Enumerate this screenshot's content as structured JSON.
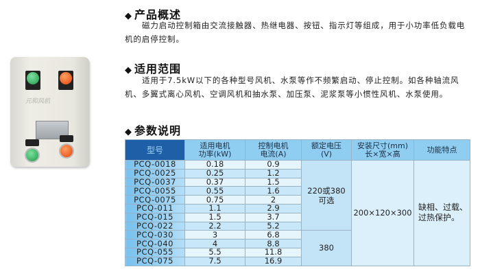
{
  "sections": {
    "overview": {
      "title": "产品概述",
      "text": "磁力启动控制箱由交流接触器、热继电器、按钮、指示灯等组成，用于小功率低负载电机的启停控制。"
    },
    "scope": {
      "title": "适用范围",
      "text": "适用于7.5kW以下的各种型号风机、水泵等作不频繁启动、停止控制。如各种轴流风机、多翼式离心风机、空调风机和抽水泵、加压泵、泥浆泵等小惯性风机、水泵使用。"
    },
    "params": {
      "title": "参数说明"
    }
  },
  "bullet": "◆",
  "product_image": {
    "icon": "control-box-photo",
    "lettering": "元和风机"
  },
  "table": {
    "headers": [
      "型号",
      "适用电机\n功率(kW)",
      "控制电机\n电流(A)",
      "额定电压\n(V)",
      "安装尺寸(mm)\n长×宽×高",
      "功能特点"
    ],
    "rows": [
      {
        "model": "PCQ-0018",
        "power": "0.18",
        "current": "0.9"
      },
      {
        "model": "PCQ-0025",
        "power": "0.25",
        "current": "1.2"
      },
      {
        "model": "PCQ-0037",
        "power": "0.37",
        "current": "1.5"
      },
      {
        "model": "PCQ-0055",
        "power": "0.55",
        "current": "1.6"
      },
      {
        "model": "PCQ-0075",
        "power": "0.75",
        "current": "2"
      },
      {
        "model": "PCQ-011",
        "power": "1.1",
        "current": "2.9"
      },
      {
        "model": "PCQ-015",
        "power": "1.5",
        "current": "3.7"
      },
      {
        "model": "PCQ-022",
        "power": "2.2",
        "current": "5.2"
      },
      {
        "model": "PCQ-030",
        "power": "3",
        "current": "6.8"
      },
      {
        "model": "PCQ-040",
        "power": "4",
        "current": "8.8"
      },
      {
        "model": "PCQ-055",
        "power": "5.5",
        "current": "11.8"
      },
      {
        "model": "PCQ-075",
        "power": "7.5",
        "current": "16.9"
      }
    ],
    "voltage_a": "220或380\n可选",
    "voltage_b": "380",
    "dimensions": "200×120×300",
    "features": "缺相、过载、\n过热保护。"
  }
}
